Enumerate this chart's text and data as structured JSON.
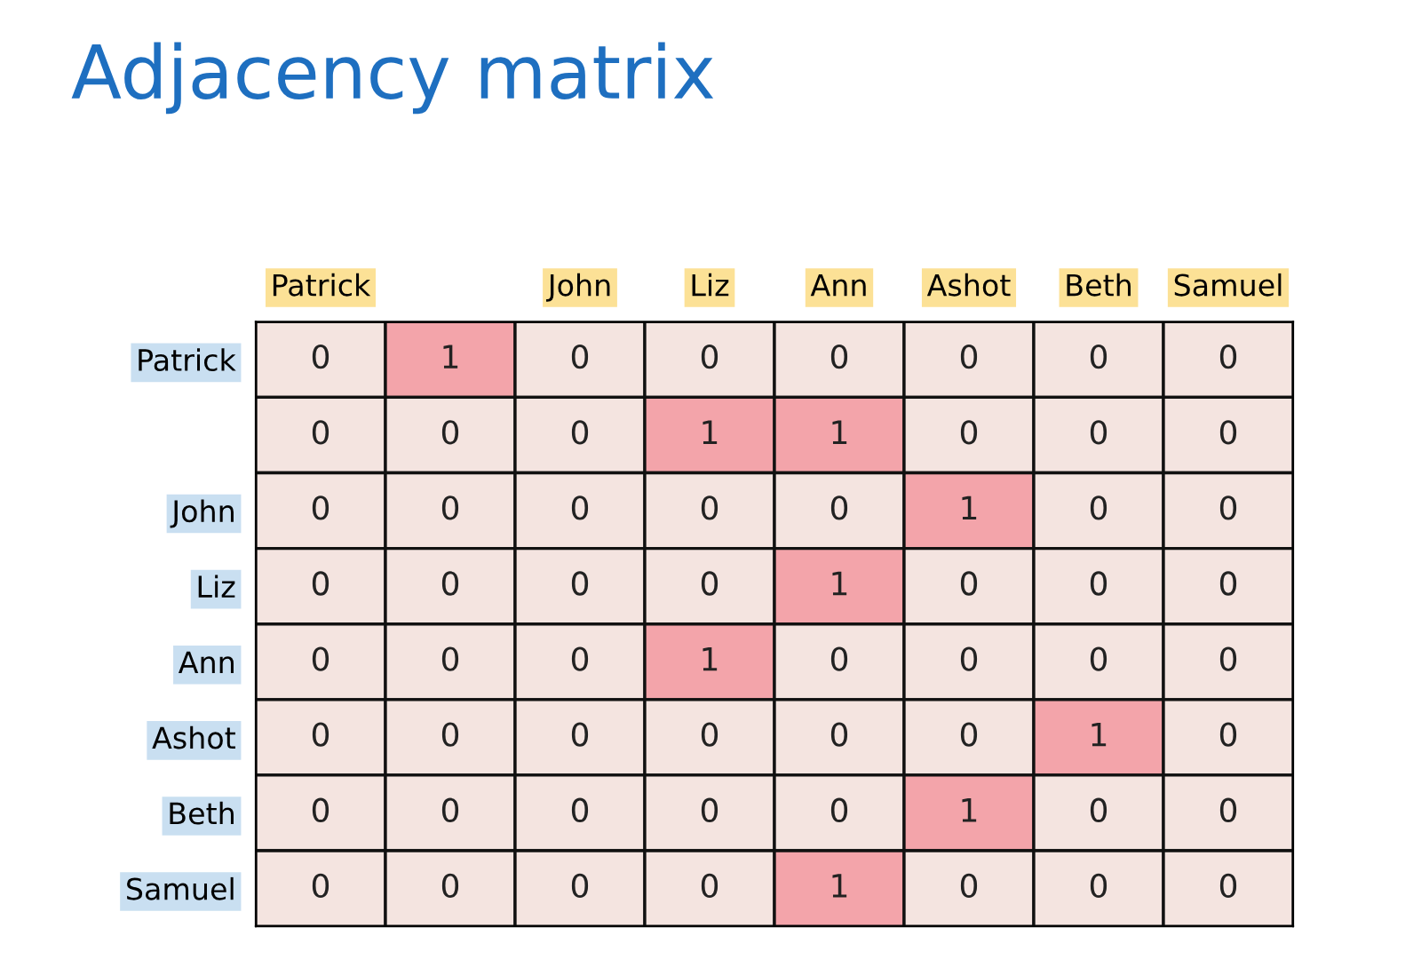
{
  "chart_data": {
    "type": "heatmap",
    "title": "Adjacency matrix",
    "categories": [
      "Patrick",
      null,
      "John",
      "Liz",
      "Ann",
      "Ashot",
      "Beth",
      "Samuel"
    ],
    "y_categories": [
      "Patrick",
      null,
      "John",
      "Liz",
      "Ann",
      "Ashot",
      "Beth",
      "Samuel"
    ],
    "cells": [
      [
        0,
        1,
        0,
        0,
        0,
        0,
        0,
        0
      ],
      [
        0,
        0,
        0,
        1,
        1,
        0,
        0,
        0
      ],
      [
        0,
        0,
        0,
        0,
        0,
        1,
        0,
        0
      ],
      [
        0,
        0,
        0,
        0,
        1,
        0,
        0,
        0
      ],
      [
        0,
        0,
        0,
        1,
        0,
        0,
        0,
        0
      ],
      [
        0,
        0,
        0,
        0,
        0,
        0,
        1,
        0
      ],
      [
        0,
        0,
        0,
        0,
        0,
        1,
        0,
        0
      ],
      [
        0,
        0,
        0,
        0,
        1,
        0,
        0,
        0
      ]
    ],
    "colors": [
      "#f4e4e0",
      "#f3a4aa"
    ],
    "data_labels": true
  }
}
